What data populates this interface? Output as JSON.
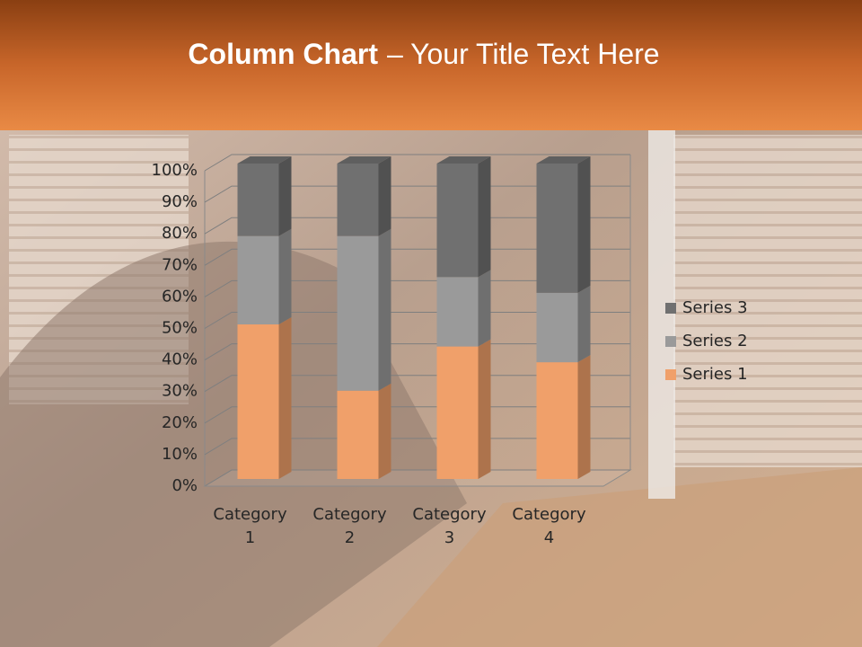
{
  "chart_data": {
    "type": "bar",
    "stacked": true,
    "three_d": true,
    "title": [
      "Column Chart",
      "– Your Title Text Here"
    ],
    "categories": [
      "Category 1",
      "Category 2",
      "Category 3",
      "Category 4"
    ],
    "series": [
      {
        "name": "Series 1",
        "color": "#f0a06a",
        "values": [
          49,
          28,
          42,
          37
        ]
      },
      {
        "name": "Series 2",
        "color": "#9a9a9a",
        "values": [
          28,
          49,
          22,
          22
        ]
      },
      {
        "name": "Series 3",
        "color": "#707070",
        "values": [
          23,
          23,
          36,
          41
        ]
      }
    ],
    "ylim": [
      0,
      100
    ],
    "yticks": [
      {
        "value": 0,
        "label": "0%"
      },
      {
        "value": 10,
        "label": "10%"
      },
      {
        "value": 20,
        "label": "20%"
      },
      {
        "value": 30,
        "label": "30%"
      },
      {
        "value": 40,
        "label": "40%"
      },
      {
        "value": 50,
        "label": "50%"
      },
      {
        "value": 60,
        "label": "60%"
      },
      {
        "value": 70,
        "label": "70%"
      },
      {
        "value": 80,
        "label": "80%"
      },
      {
        "value": 90,
        "label": "90%"
      },
      {
        "value": 100,
        "label": "100%"
      }
    ],
    "grid": true,
    "legend": "right"
  }
}
